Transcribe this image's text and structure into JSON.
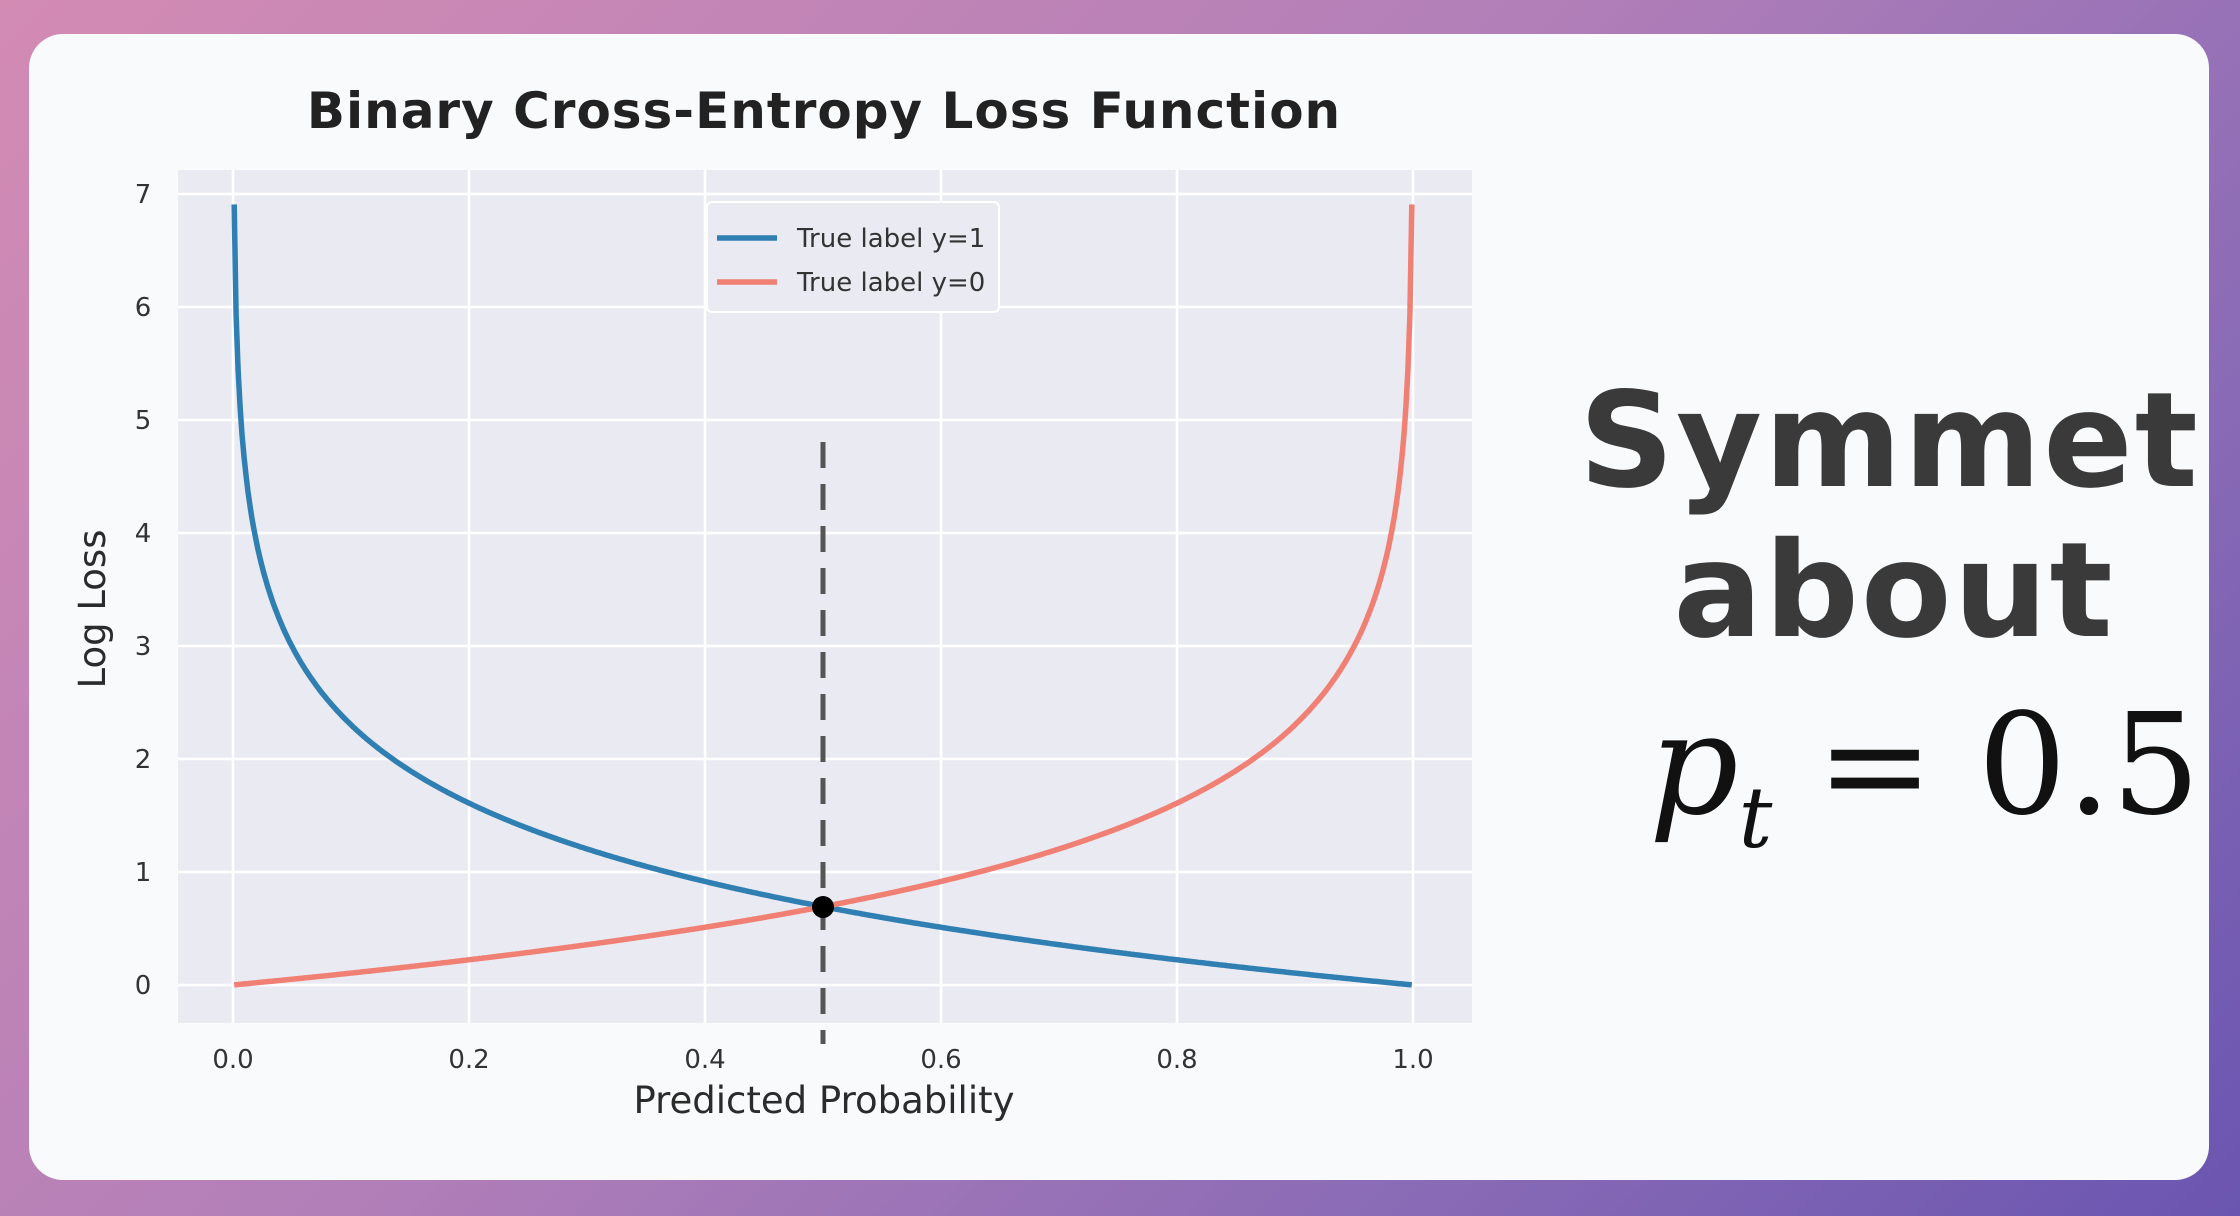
{
  "chart_data": {
    "type": "line",
    "title": "Binary Cross-Entropy Loss Function",
    "xlabel": "Predicted Probability",
    "ylabel": "Log Loss",
    "xlim": [
      0.0,
      1.0
    ],
    "ylim": [
      0,
      7
    ],
    "x_ticks": [
      "0.0",
      "0.2",
      "0.4",
      "0.6",
      "0.8",
      "1.0"
    ],
    "y_ticks": [
      "0",
      "1",
      "2",
      "3",
      "4",
      "5",
      "6",
      "7"
    ],
    "grid": true,
    "legend_position": "top-center",
    "series": [
      {
        "name": "True label y=1",
        "color": "#2f7fb3",
        "function": "-ln(p)",
        "x": [
          0.001,
          0.01,
          0.05,
          0.1,
          0.2,
          0.3,
          0.4,
          0.5,
          0.6,
          0.7,
          0.8,
          0.9,
          0.999
        ],
        "y": [
          6.91,
          4.61,
          3.0,
          2.3,
          1.61,
          1.2,
          0.92,
          0.69,
          0.51,
          0.36,
          0.22,
          0.11,
          0.0
        ]
      },
      {
        "name": "True label y=0",
        "color": "#f08074",
        "function": "-ln(1-p)",
        "x": [
          0.001,
          0.1,
          0.2,
          0.3,
          0.4,
          0.5,
          0.6,
          0.7,
          0.8,
          0.9,
          0.95,
          0.99,
          0.999
        ],
        "y": [
          0.0,
          0.11,
          0.22,
          0.36,
          0.51,
          0.69,
          0.92,
          1.2,
          1.61,
          2.3,
          3.0,
          4.61,
          6.91
        ]
      }
    ],
    "reference_line": {
      "x": 0.5,
      "style": "dashed",
      "color": "#555555"
    },
    "intersection_point": {
      "x": 0.5,
      "y": 0.69
    }
  },
  "annotation": {
    "line1": "Symmetric",
    "line2": "about",
    "formula_var": "p",
    "formula_sub": "t",
    "formula_eq": "=",
    "formula_value": "0.5"
  }
}
